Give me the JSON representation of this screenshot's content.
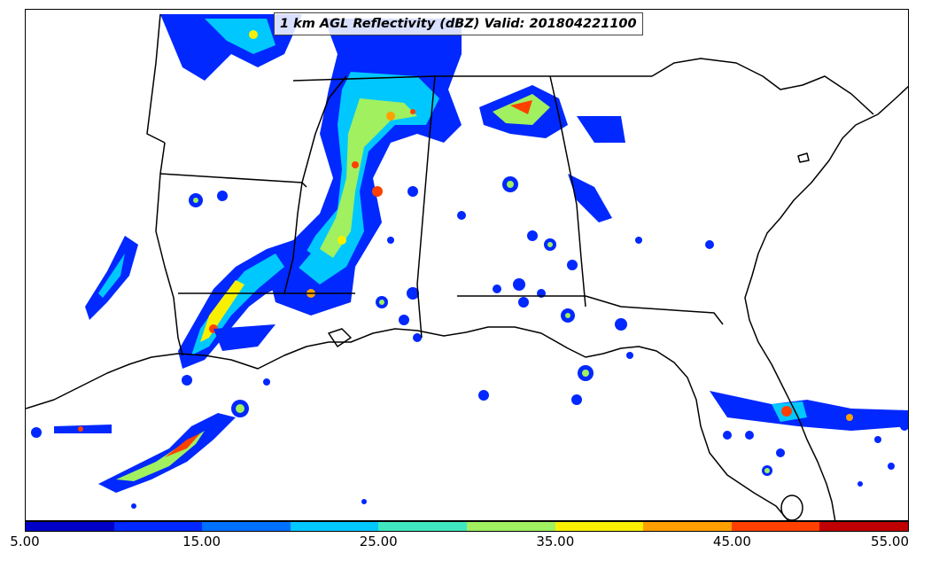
{
  "title": "1 km AGL Reflectivity (dBZ) Valid: 201804221100",
  "colorbar": {
    "colors": [
      "#0000c8",
      "#0028ff",
      "#0070ff",
      "#00c8ff",
      "#40e8c0",
      "#a0f060",
      "#f8f000",
      "#ffa000",
      "#ff4000",
      "#c00000"
    ],
    "tick_labels": [
      "5.00",
      "15.00",
      "25.00",
      "35.00",
      "45.00",
      "55.00"
    ]
  },
  "map": {
    "region": "Southeastern United States and northern Gulf of Mexico",
    "boundary_color": "#000000"
  }
}
